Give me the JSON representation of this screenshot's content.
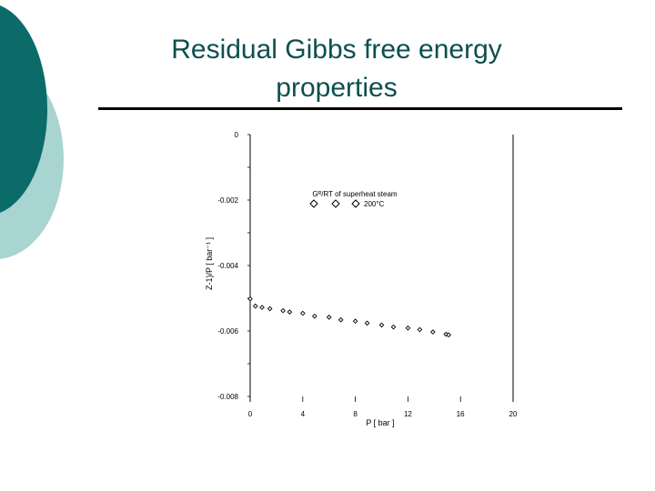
{
  "slide": {
    "title_line1": "Residual Gibbs free energy",
    "title_line2": "properties",
    "colors": {
      "title": "#0d4f4f",
      "teal_dark": "#0b6b68",
      "teal_light": "#a8d4d2"
    }
  },
  "chart_data": {
    "type": "scatter",
    "title": "",
    "xlabel": "P  [ bar ]",
    "ylabel": "Z-1)/P   [ bar⁻¹ ]",
    "xlim": [
      0,
      20
    ],
    "ylim": [
      -0.008,
      0
    ],
    "x_ticks": [
      "0",
      "4",
      "8",
      "12",
      "16",
      "20"
    ],
    "y_ticks": [
      "0",
      "-0.002",
      "-0.004",
      "-0.006",
      "-0.008"
    ],
    "grid": false,
    "legend": {
      "placement": "top-center",
      "title": "Gᴿ/RT of superheat steam",
      "entries": [
        "200°C"
      ]
    },
    "series": [
      {
        "name": "200°C",
        "marker": "diamond",
        "x": [
          0.0,
          0.4,
          0.9,
          1.5,
          2.5,
          3.0,
          4.0,
          4.9,
          6.0,
          6.9,
          8.0,
          8.9,
          10.0,
          10.9,
          12.0,
          12.9,
          13.9,
          14.9,
          15.1
        ],
        "y": [
          -0.00502,
          -0.00524,
          -0.00528,
          -0.00532,
          -0.00538,
          -0.00542,
          -0.00546,
          -0.00555,
          -0.00558,
          -0.00566,
          -0.0057,
          -0.00576,
          -0.00582,
          -0.00588,
          -0.00591,
          -0.00596,
          -0.00603,
          -0.0061,
          -0.00612
        ]
      }
    ]
  }
}
